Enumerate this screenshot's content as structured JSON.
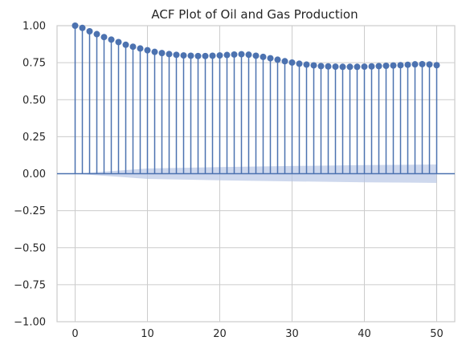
{
  "chart_data": {
    "type": "stem",
    "title": "ACF Plot of Oil and Gas Production",
    "xlabel": "",
    "ylabel": "",
    "xlim": [
      -2.5,
      52.5
    ],
    "ylim": [
      -1.0,
      1.0
    ],
    "x_ticks": [
      0,
      10,
      20,
      30,
      40,
      50
    ],
    "y_ticks": [
      -1.0,
      -0.75,
      -0.5,
      -0.25,
      0.0,
      0.25,
      0.5,
      0.75,
      1.0
    ],
    "x_tick_labels": [
      "0",
      "10",
      "20",
      "30",
      "40",
      "50"
    ],
    "y_tick_labels": [
      "−1.00",
      "−0.75",
      "−0.50",
      "−0.25",
      "0.00",
      "0.25",
      "0.50",
      "0.75",
      "1.00"
    ],
    "grid": true,
    "lags": [
      0,
      1,
      2,
      3,
      4,
      5,
      6,
      7,
      8,
      9,
      10,
      11,
      12,
      13,
      14,
      15,
      16,
      17,
      18,
      19,
      20,
      21,
      22,
      23,
      24,
      25,
      26,
      27,
      28,
      29,
      30,
      31,
      32,
      33,
      34,
      35,
      36,
      37,
      38,
      39,
      40,
      41,
      42,
      43,
      44,
      45,
      46,
      47,
      48,
      49,
      50
    ],
    "acf": [
      1.0,
      0.985,
      0.962,
      0.943,
      0.923,
      0.906,
      0.889,
      0.871,
      0.858,
      0.846,
      0.834,
      0.823,
      0.815,
      0.808,
      0.803,
      0.799,
      0.797,
      0.795,
      0.795,
      0.797,
      0.799,
      0.802,
      0.805,
      0.807,
      0.804,
      0.797,
      0.789,
      0.78,
      0.77,
      0.76,
      0.751,
      0.743,
      0.737,
      0.732,
      0.727,
      0.725,
      0.723,
      0.722,
      0.722,
      0.722,
      0.723,
      0.725,
      0.727,
      0.729,
      0.731,
      0.733,
      0.736,
      0.739,
      0.74,
      0.738,
      0.733
    ],
    "confidence_band": {
      "lags": [
        0,
        10,
        20,
        30,
        40,
        50
      ],
      "upper": [
        0.0,
        0.035,
        0.045,
        0.052,
        0.058,
        0.062
      ],
      "lower": [
        0.0,
        -0.035,
        -0.045,
        -0.052,
        -0.058,
        -0.062
      ]
    },
    "colors": {
      "stem": "#4c72b0",
      "band": "#b4c3e3",
      "grid": "#cccccc",
      "zero_line": "#4c72b0"
    }
  }
}
